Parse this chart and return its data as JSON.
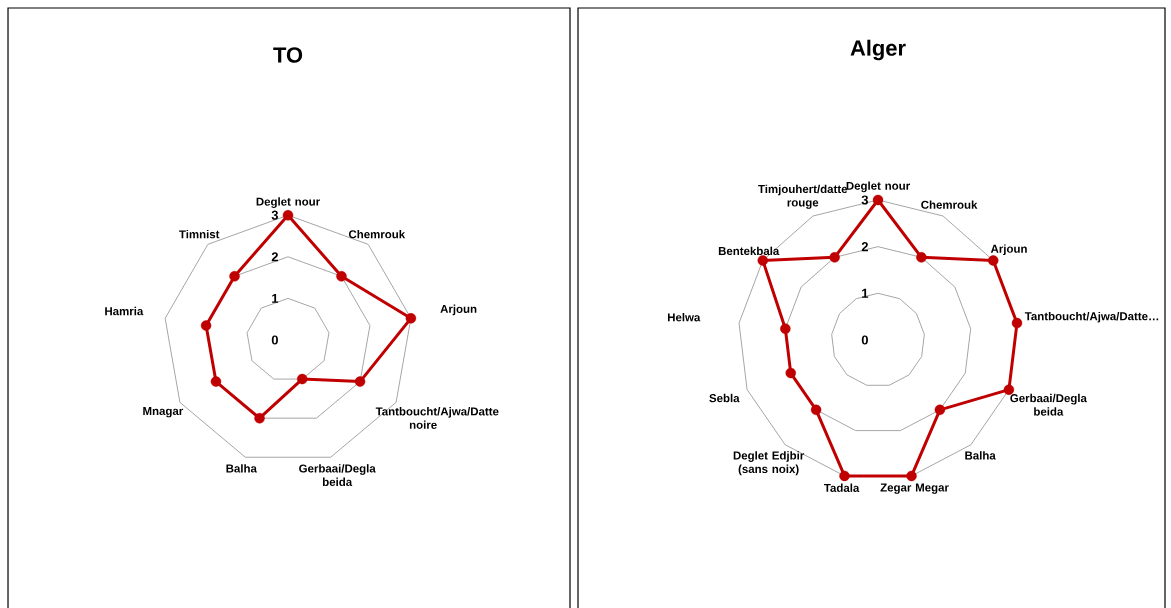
{
  "chart_data": [
    {
      "type": "radar",
      "title": "TO",
      "categories": [
        "Deglet nour",
        "Chemrouk",
        "Arjoun",
        "Tantboucht/Ajwa/Datte noire",
        "Gerbaai/Degla beida",
        "Balha",
        "Mnagar",
        "Hamria",
        "Timnist"
      ],
      "series": [
        {
          "color": "#c00000",
          "values": [
            3,
            2,
            3,
            2,
            1,
            2,
            2,
            2,
            2
          ]
        }
      ],
      "ylim": [
        0,
        3
      ],
      "yticks": [
        0,
        1,
        2,
        3
      ],
      "grid": true,
      "marker": "circle"
    },
    {
      "type": "radar",
      "title": "Alger",
      "categories": [
        "Deglet nour",
        "Chemrouk",
        "Arjoun",
        "Tantboucht/Ajwa/Datte…",
        "Gerbaai/Degla beida",
        "Balha",
        "Zegar Megar",
        "Tadala",
        "Deglet Edjbir (sans noix)",
        "Sebla",
        "Helwa",
        "Bentekbala",
        "Timjouhert/datte rouge"
      ],
      "series": [
        {
          "color": "#c00000",
          "values": [
            3,
            2,
            3,
            3,
            3,
            2,
            3,
            3,
            2,
            2,
            2,
            3,
            2
          ]
        }
      ],
      "ylim": [
        0,
        3
      ],
      "yticks": [
        0,
        1,
        2,
        3
      ],
      "grid": true,
      "marker": "circle"
    }
  ]
}
